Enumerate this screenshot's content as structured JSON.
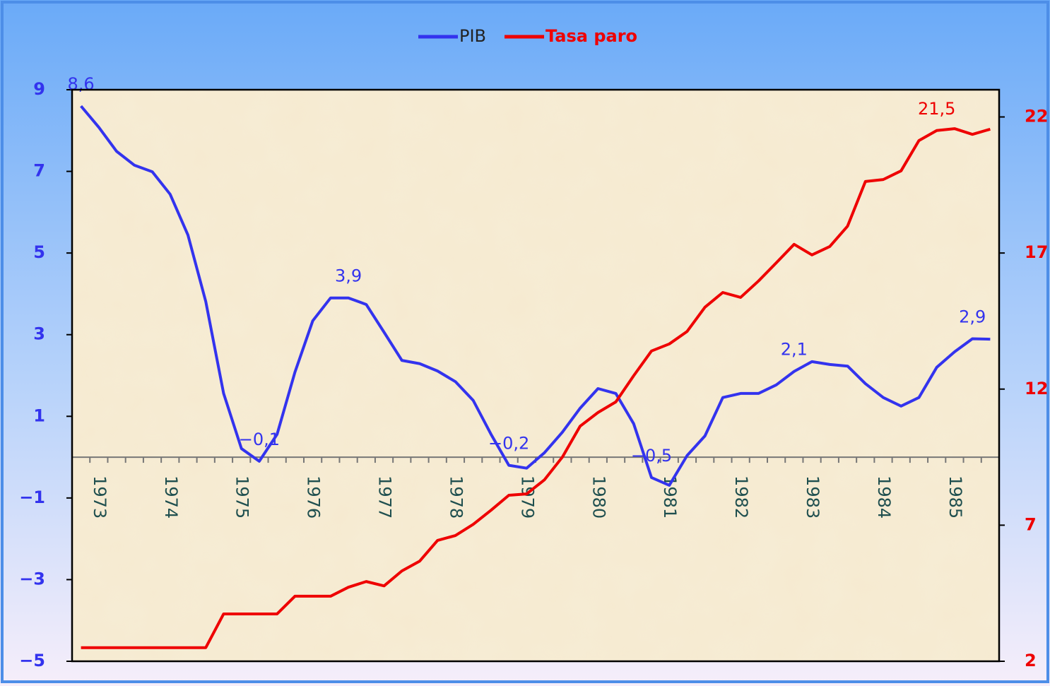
{
  "chart_data": {
    "type": "line",
    "categories": [
      null,
      "1973",
      null,
      null,
      null,
      "1974",
      null,
      null,
      null,
      "1975",
      null,
      null,
      null,
      "1976",
      null,
      null,
      null,
      "1977",
      null,
      null,
      null,
      "1978",
      null,
      null,
      null,
      "1979",
      null,
      null,
      null,
      "1980",
      null,
      null,
      null,
      "1981",
      null,
      null,
      null,
      "1982",
      null,
      null,
      null,
      "1983",
      null,
      null,
      null,
      "1984",
      null,
      null,
      null,
      "1985",
      null,
      null
    ],
    "series": [
      {
        "name": "PIB",
        "color": "#3333ee",
        "values": [
          8.6,
          8.08,
          7.49,
          7.15,
          6.99,
          6.44,
          5.44,
          3.81,
          1.56,
          0.21,
          -0.1,
          0.56,
          2.08,
          3.34,
          3.9,
          3.9,
          3.74,
          3.06,
          2.37,
          2.29,
          2.11,
          1.85,
          1.39,
          0.56,
          -0.2,
          -0.27,
          0.11,
          0.61,
          1.2,
          1.68,
          1.56,
          0.82,
          -0.5,
          -0.69,
          0.04,
          0.52,
          1.46,
          1.56,
          1.56,
          1.77,
          2.1,
          2.34,
          2.27,
          2.23,
          1.8,
          1.46,
          1.25,
          1.46,
          2.2,
          2.58,
          2.9,
          2.89
        ],
        "value_labels": [
          "8,6",
          null,
          null,
          null,
          null,
          null,
          null,
          null,
          null,
          null,
          "−0,1",
          null,
          null,
          null,
          null,
          "3,9",
          null,
          null,
          null,
          null,
          null,
          null,
          null,
          null,
          "−0,2",
          null,
          null,
          null,
          null,
          null,
          null,
          null,
          "−0,5",
          null,
          null,
          null,
          null,
          null,
          null,
          null,
          "2,1",
          null,
          null,
          null,
          null,
          null,
          null,
          null,
          null,
          null,
          "2,9",
          null
        ]
      },
      {
        "name": "Tasa paro",
        "color": "#ee0000",
        "axis": "y2",
        "values": [
          2.5,
          2.5,
          2.5,
          2.5,
          2.5,
          2.5,
          2.5,
          2.5,
          3.74,
          3.74,
          3.74,
          3.74,
          4.39,
          4.39,
          4.39,
          4.72,
          4.93,
          4.77,
          5.32,
          5.68,
          6.44,
          6.62,
          7.03,
          7.55,
          8.1,
          8.15,
          8.67,
          9.5,
          10.64,
          11.14,
          11.53,
          12.49,
          13.4,
          13.66,
          14.12,
          15.01,
          15.55,
          15.37,
          15.97,
          16.64,
          17.32,
          16.93,
          17.24,
          17.99,
          19.63,
          19.7,
          20.02,
          21.13,
          21.5,
          21.57,
          21.36,
          21.55
        ],
        "value_labels": [
          null,
          null,
          null,
          null,
          null,
          null,
          null,
          null,
          null,
          null,
          null,
          null,
          null,
          null,
          null,
          null,
          null,
          null,
          null,
          null,
          null,
          null,
          null,
          null,
          null,
          null,
          null,
          null,
          null,
          null,
          null,
          null,
          null,
          null,
          null,
          null,
          null,
          null,
          null,
          null,
          null,
          null,
          null,
          null,
          null,
          null,
          null,
          null,
          "21,5",
          null,
          null,
          null
        ]
      }
    ],
    "ylim": [
      -5,
      9
    ],
    "yticks": [
      {
        "value": -5,
        "label": "−5"
      },
      {
        "value": -3,
        "label": "−3"
      },
      {
        "value": -1,
        "label": "−1"
      },
      1,
      3,
      5,
      7,
      9
    ],
    "y2lim": [
      2,
      23
    ],
    "y2ticks": [
      2,
      7,
      12,
      17,
      22
    ],
    "legend": "top"
  }
}
